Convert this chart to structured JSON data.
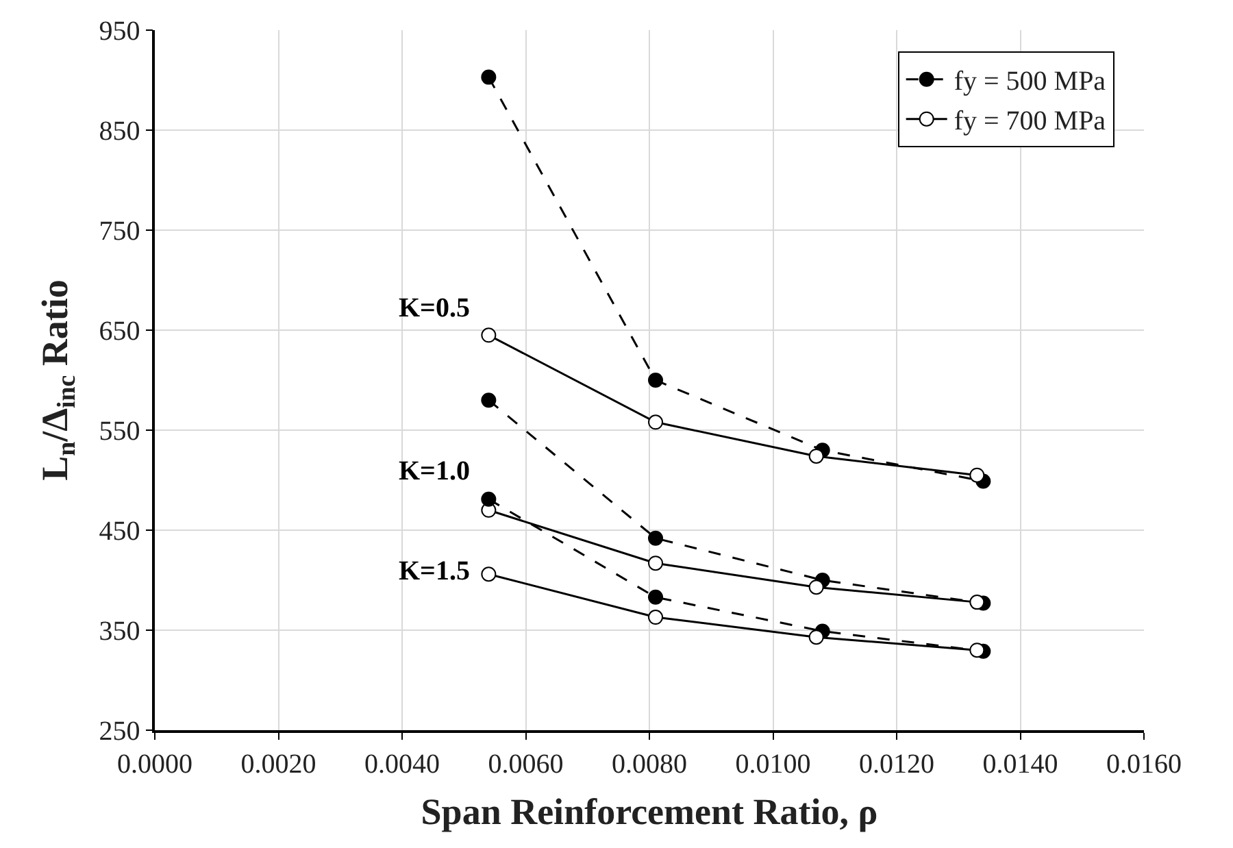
{
  "chart_data": {
    "type": "line",
    "xlabel": "Span Reinforcement Ratio, ρ",
    "ylabel": "L$_{n}$/Δ$_{inc}$ Ratio",
    "xlim": [
      0,
      0.016
    ],
    "xticks": [
      {
        "value": 0,
        "label": "0.0000"
      },
      {
        "value": 0.002,
        "label": "0.0020"
      },
      {
        "value": 0.004,
        "label": "0.0040"
      },
      {
        "value": 0.006,
        "label": "0.0060"
      },
      {
        "value": 0.008,
        "label": "0.0080"
      },
      {
        "value": 0.01,
        "label": "0.0100"
      },
      {
        "value": 0.012,
        "label": "0.0120"
      },
      {
        "value": 0.014,
        "label": "0.0140"
      },
      {
        "value": 0.016,
        "label": "0.0160"
      }
    ],
    "ylim": [
      250,
      950
    ],
    "yticks": [
      250,
      350,
      450,
      550,
      650,
      750,
      850,
      950
    ],
    "grid": true,
    "legend": "top right",
    "series": [
      {
        "name": "fy = 500 MPa",
        "color": "#000000",
        "line_style": "dashed",
        "marker": "circle",
        "x": [
          0.0054,
          0.0081,
          0.0108,
          0.0134
        ],
        "values": [
          903,
          600,
          530,
          499
        ]
      },
      {
        "name": "fy = 700 MPa",
        "color": "#000000",
        "line_style": "solid",
        "marker": "circle-open",
        "x": [
          0.0054,
          0.0081,
          0.0107,
          0.0133
        ],
        "values": [
          645,
          558,
          524,
          505
        ]
      },
      {
        "color": "#000000",
        "line_style": "dashed",
        "marker": "circle",
        "x": [
          0.0054,
          0.0081,
          0.0108,
          0.0134
        ],
        "values": [
          580,
          442,
          400,
          377
        ]
      },
      {
        "color": "#000000",
        "line_style": "solid",
        "marker": "circle-open",
        "x": [
          0.0054,
          0.0081,
          0.0107,
          0.0133
        ],
        "values": [
          470,
          417,
          393,
          378
        ]
      },
      {
        "color": "#000000",
        "line_style": "dashed",
        "marker": "circle",
        "x": [
          0.0054,
          0.0081,
          0.0108,
          0.0134
        ],
        "values": [
          481,
          383,
          349,
          329
        ]
      },
      {
        "color": "#000000",
        "line_style": "solid",
        "marker": "circle-open",
        "x": [
          0.0054,
          0.0081,
          0.0107,
          0.0133
        ],
        "values": [
          406,
          363,
          343,
          330
        ]
      }
    ],
    "annotations": [
      "K=0.5",
      "K=1.0",
      "K=1.5"
    ]
  }
}
